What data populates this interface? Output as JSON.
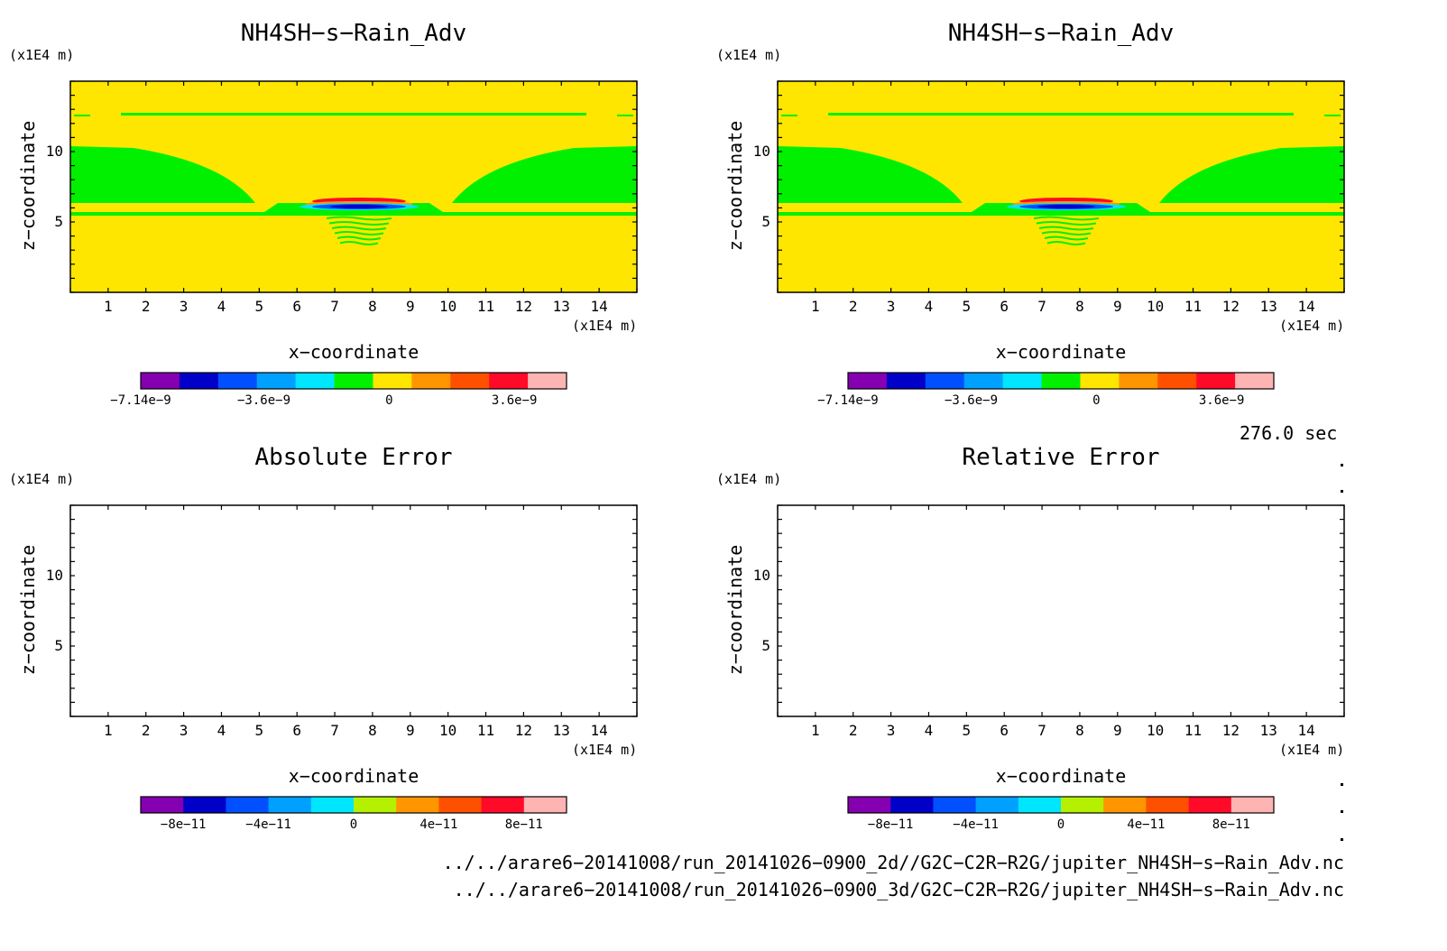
{
  "panels": [
    {
      "title": "NH4SH−s−Rain_Adv",
      "yunit": "(x1E4 m)",
      "xunit": "(x1E4 m)",
      "xlabel": "x−coordinate",
      "ylabel": "z−coordinate",
      "colorbar": {
        "colors": [
          "#8400b0",
          "#0000c8",
          "#0050ff",
          "#00a0ff",
          "#00e6ff",
          "#00f000",
          "#ffe600",
          "#ff9600",
          "#ff5000",
          "#ff0a28",
          "#ffb4b4"
        ],
        "tick_labels": [
          "−7.14e−9",
          "−3.6e−9",
          "0",
          "3.6e−9"
        ]
      }
    },
    {
      "title": "NH4SH−s−Rain_Adv",
      "yunit": "(x1E4 m)",
      "xunit": "(x1E4 m)",
      "xlabel": "x−coordinate",
      "ylabel": "z−coordinate",
      "colorbar": {
        "colors": [
          "#8400b0",
          "#0000c8",
          "#0050ff",
          "#00a0ff",
          "#00e6ff",
          "#00f000",
          "#ffe600",
          "#ff9600",
          "#ff5000",
          "#ff0a28",
          "#ffb4b4"
        ],
        "tick_labels": [
          "−7.14e−9",
          "−3.6e−9",
          "0",
          "3.6e−9"
        ]
      }
    },
    {
      "title": "Absolute Error",
      "yunit": "(x1E4 m)",
      "xunit": "(x1E4 m)",
      "xlabel": "x−coordinate",
      "ylabel": "z−coordinate",
      "colorbar": {
        "colors": [
          "#8400b0",
          "#0000c8",
          "#0050ff",
          "#00a0ff",
          "#00e6ff",
          "#b4f000",
          "#ff9600",
          "#ff5000",
          "#ff0a28",
          "#ffb4b4"
        ],
        "tick_labels": [
          "−8e−11",
          "−4e−11",
          "0",
          "4e−11",
          "8e−11"
        ]
      }
    },
    {
      "title": "Relative Error",
      "yunit": "(x1E4 m)",
      "xunit": "(x1E4 m)",
      "xlabel": "x−coordinate",
      "ylabel": "z−coordinate",
      "colorbar": {
        "colors": [
          "#8400b0",
          "#0000c8",
          "#0050ff",
          "#00a0ff",
          "#00e6ff",
          "#b4f000",
          "#ff9600",
          "#ff5000",
          "#ff0a28",
          "#ffb4b4"
        ],
        "tick_labels": [
          "−8e−11",
          "−4e−11",
          "0",
          "4e−11",
          "8e−11"
        ]
      }
    }
  ],
  "time_label": "276.0 sec",
  "file_paths": [
    "../../arare6−20141008/run_20141026−0900_2d//G2C−C2R−R2G/jupiter_NH4SH−s−Rain_Adv.nc",
    "../../arare6−20141008/run_20141026−0900_3d/G2C−C2R−R2G/jupiter_NH4SH−s−Rain_Adv.nc"
  ],
  "chart_data": [
    {
      "type": "heatmap",
      "title": "NH4SH−s−Rain_Adv",
      "xlabel": "x−coordinate",
      "ylabel": "z−coordinate",
      "xunit": "(x1E4 m)",
      "yunit": "(x1E4 m)",
      "xlim": [
        0,
        15
      ],
      "ylim": [
        0,
        15
      ],
      "xticks": [
        1,
        2,
        3,
        4,
        5,
        6,
        7,
        8,
        9,
        10,
        11,
        12,
        13,
        14
      ],
      "yticks": [
        5,
        10
      ],
      "colorbar_ticks": [
        -7.14e-09,
        -3.6e-09,
        0,
        3.6e-09
      ],
      "colorbar_range": [
        -7.14e-09,
        5.1e-09
      ]
    },
    {
      "type": "heatmap",
      "title": "NH4SH−s−Rain_Adv",
      "xlabel": "x−coordinate",
      "ylabel": "z−coordinate",
      "xunit": "(x1E4 m)",
      "yunit": "(x1E4 m)",
      "xlim": [
        0,
        15
      ],
      "ylim": [
        0,
        15
      ],
      "xticks": [
        1,
        2,
        3,
        4,
        5,
        6,
        7,
        8,
        9,
        10,
        11,
        12,
        13,
        14
      ],
      "yticks": [
        5,
        10
      ],
      "colorbar_ticks": [
        -7.14e-09,
        -3.6e-09,
        0,
        3.6e-09
      ],
      "colorbar_range": [
        -7.14e-09,
        5.1e-09
      ]
    },
    {
      "type": "heatmap",
      "title": "Absolute Error",
      "xlabel": "x−coordinate",
      "ylabel": "z−coordinate",
      "xunit": "(x1E4 m)",
      "yunit": "(x1E4 m)",
      "xlim": [
        0,
        15
      ],
      "ylim": [
        0,
        15
      ],
      "xticks": [
        1,
        2,
        3,
        4,
        5,
        6,
        7,
        8,
        9,
        10,
        11,
        12,
        13,
        14
      ],
      "yticks": [
        5,
        10
      ],
      "colorbar_ticks": [
        -8e-11,
        -4e-11,
        0,
        4e-11,
        8e-11
      ],
      "colorbar_range": [
        -1e-10,
        1e-10
      ],
      "values": "uniform (blank field)"
    },
    {
      "type": "heatmap",
      "title": "Relative Error",
      "xlabel": "x−coordinate",
      "ylabel": "z−coordinate",
      "xunit": "(x1E4 m)",
      "yunit": "(x1E4 m)",
      "xlim": [
        0,
        15
      ],
      "ylim": [
        0,
        15
      ],
      "xticks": [
        1,
        2,
        3,
        4,
        5,
        6,
        7,
        8,
        9,
        10,
        11,
        12,
        13,
        14
      ],
      "yticks": [
        5,
        10
      ],
      "colorbar_ticks": [
        -8e-11,
        -4e-11,
        0,
        4e-11,
        8e-11
      ],
      "colorbar_range": [
        -1e-10,
        1e-10
      ],
      "values": "uniform (blank field)"
    }
  ]
}
